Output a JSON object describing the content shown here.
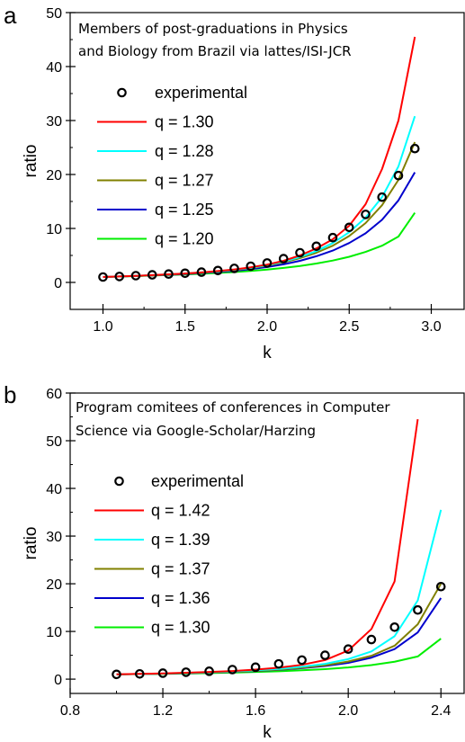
{
  "chart_data": [
    {
      "panel": "a",
      "type": "line",
      "title_lines": [
        "Members of post-graduations in Physics",
        "and Biology from Brazil via lattes/ISI-JCR"
      ],
      "xlabel": "k",
      "ylabel": "ratio",
      "xlim": [
        0.8,
        3.2
      ],
      "ylim": [
        -5,
        50
      ],
      "xticks": [
        1.0,
        1.5,
        2.0,
        2.5,
        3.0
      ],
      "xtick_labels": [
        "1.0",
        "1.5",
        "2.0",
        "2.5",
        "3.0"
      ],
      "yticks": [
        0,
        10,
        20,
        30,
        40,
        50
      ],
      "ytick_labels": [
        "0",
        "10",
        "20",
        "30",
        "40",
        "50"
      ],
      "legend_position": "upper-left",
      "grid": false,
      "experimental": {
        "name": "experimental",
        "x": [
          1.0,
          1.1,
          1.2,
          1.3,
          1.4,
          1.5,
          1.6,
          1.7,
          1.8,
          1.9,
          2.0,
          2.1,
          2.2,
          2.3,
          2.4,
          2.5,
          2.6,
          2.7,
          2.8,
          2.9
        ],
        "y": [
          1.0,
          1.1,
          1.25,
          1.4,
          1.55,
          1.7,
          1.9,
          2.2,
          2.6,
          3.0,
          3.6,
          4.4,
          5.5,
          6.7,
          8.3,
          10.2,
          12.6,
          15.8,
          19.8,
          24.8
        ]
      },
      "x": [
        1.0,
        1.1,
        1.2,
        1.3,
        1.4,
        1.5,
        1.6,
        1.7,
        1.8,
        1.9,
        2.0,
        2.1,
        2.2,
        2.3,
        2.4,
        2.5,
        2.6,
        2.7,
        2.8,
        2.9
      ],
      "series": [
        {
          "name": "q = 1.30",
          "color": "#ff0000",
          "values": [
            1.0,
            1.1,
            1.2,
            1.35,
            1.5,
            1.65,
            1.85,
            2.1,
            2.4,
            2.8,
            3.3,
            4.0,
            5.0,
            6.3,
            8.0,
            10.5,
            14.5,
            21.0,
            30.0,
            45.5
          ]
        },
        {
          "name": "q = 1.28",
          "color": "#00ffff",
          "values": [
            1.0,
            1.1,
            1.2,
            1.35,
            1.5,
            1.65,
            1.85,
            2.05,
            2.35,
            2.7,
            3.2,
            3.85,
            4.7,
            5.8,
            7.3,
            9.3,
            12.0,
            15.8,
            21.5,
            30.8
          ]
        },
        {
          "name": "q = 1.27",
          "color": "#808000",
          "values": [
            1.0,
            1.1,
            1.2,
            1.3,
            1.45,
            1.6,
            1.8,
            2.0,
            2.3,
            2.65,
            3.1,
            3.7,
            4.5,
            5.5,
            6.8,
            8.6,
            11.0,
            14.3,
            19.0,
            26.0
          ]
        },
        {
          "name": "q = 1.25",
          "color": "#0000cc",
          "values": [
            1.0,
            1.1,
            1.2,
            1.3,
            1.42,
            1.55,
            1.72,
            1.92,
            2.15,
            2.45,
            2.85,
            3.35,
            4.0,
            4.85,
            5.9,
            7.3,
            9.1,
            11.6,
            15.2,
            20.4
          ]
        },
        {
          "name": "q = 1.20",
          "color": "#00ee00",
          "values": [
            1.0,
            1.08,
            1.17,
            1.27,
            1.37,
            1.48,
            1.6,
            1.75,
            1.92,
            2.12,
            2.37,
            2.68,
            3.05,
            3.5,
            4.05,
            4.75,
            5.65,
            6.8,
            8.5,
            12.9
          ]
        }
      ]
    },
    {
      "panel": "b",
      "type": "line",
      "title_lines": [
        "Program comitees of conferences in Computer",
        "Science via Google-Scholar/Harzing"
      ],
      "xlabel": "k",
      "ylabel": "ratio",
      "xlim": [
        0.8,
        2.5
      ],
      "ylim": [
        -3,
        60
      ],
      "xticks": [
        0.8,
        1.2,
        1.6,
        2.0,
        2.4
      ],
      "xtick_labels": [
        "0.8",
        "1.2",
        "1.6",
        "2.0",
        "2.4"
      ],
      "yticks": [
        0,
        10,
        20,
        30,
        40,
        50,
        60
      ],
      "ytick_labels": [
        "0",
        "10",
        "20",
        "30",
        "40",
        "50",
        "60"
      ],
      "legend_position": "upper-left",
      "grid": false,
      "experimental": {
        "name": "experimental",
        "x": [
          1.0,
          1.1,
          1.2,
          1.3,
          1.4,
          1.5,
          1.6,
          1.7,
          1.8,
          1.9,
          2.0,
          2.1,
          2.2,
          2.3,
          2.4
        ],
        "y": [
          1.0,
          1.1,
          1.25,
          1.45,
          1.65,
          2.0,
          2.5,
          3.2,
          4.0,
          5.0,
          6.3,
          8.3,
          10.9,
          14.5,
          19.4
        ]
      },
      "x": [
        1.0,
        1.1,
        1.2,
        1.3,
        1.4,
        1.5,
        1.6,
        1.7,
        1.8,
        1.9,
        2.0,
        2.1,
        2.2,
        2.3,
        2.4
      ],
      "series": [
        {
          "name": "q = 1.42",
          "color": "#ff0000",
          "values": [
            1.0,
            1.1,
            1.2,
            1.35,
            1.5,
            1.7,
            2.0,
            2.4,
            3.0,
            4.0,
            6.0,
            10.5,
            20.5,
            54.5,
            null
          ]
        },
        {
          "name": "q = 1.39",
          "color": "#00ffff",
          "values": [
            1.0,
            1.08,
            1.18,
            1.3,
            1.45,
            1.6,
            1.85,
            2.15,
            2.6,
            3.2,
            4.2,
            5.8,
            9.0,
            16.5,
            35.5
          ]
        },
        {
          "name": "q = 1.37",
          "color": "#808000",
          "values": [
            1.0,
            1.07,
            1.16,
            1.27,
            1.4,
            1.55,
            1.75,
            2.0,
            2.4,
            2.9,
            3.7,
            4.9,
            7.0,
            11.5,
            20.0
          ]
        },
        {
          "name": "q = 1.36",
          "color": "#0000cc",
          "values": [
            1.0,
            1.07,
            1.15,
            1.25,
            1.38,
            1.52,
            1.7,
            1.95,
            2.3,
            2.75,
            3.4,
            4.5,
            6.3,
            9.8,
            17.0
          ]
        },
        {
          "name": "q = 1.30",
          "color": "#00ee00",
          "values": [
            1.0,
            1.05,
            1.11,
            1.18,
            1.27,
            1.37,
            1.5,
            1.65,
            1.85,
            2.1,
            2.45,
            2.95,
            3.65,
            4.75,
            8.5
          ]
        }
      ]
    }
  ]
}
